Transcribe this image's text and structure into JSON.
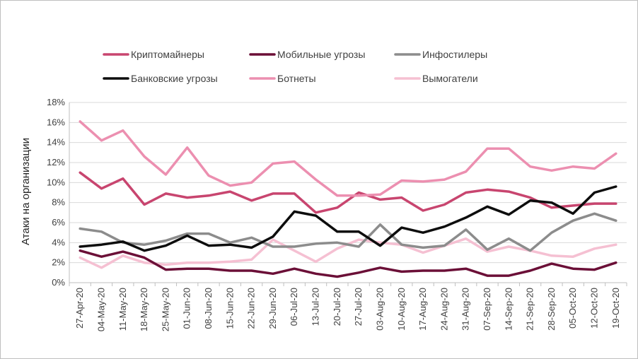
{
  "chart_data": {
    "type": "line",
    "title": "",
    "xlabel": "",
    "ylabel": "Атаки на организации",
    "ylim": [
      0,
      18
    ],
    "yticks": [
      "0%",
      "2%",
      "4%",
      "6%",
      "8%",
      "10%",
      "12%",
      "14%",
      "16%",
      "18%"
    ],
    "grid": "horizontal",
    "legend_position": "top",
    "categories": [
      "27-Apr-20",
      "04-May-20",
      "11-May-20",
      "18-May-20",
      "25-May-20",
      "01-Jun-20",
      "08-Jun-20",
      "15-Jun-20",
      "22-Jun-20",
      "29-Jun-20",
      "06-Jul-20",
      "13-Jul-20",
      "20-Jul-20",
      "27-Jul-20",
      "03-Aug-20",
      "10-Aug-20",
      "17-Aug-20",
      "24-Aug-20",
      "31-Aug-20",
      "07-Sep-20",
      "14-Sep-20",
      "21-Sep-20",
      "28-Sep-20",
      "05-Oct-20",
      "12-Oct-20",
      "19-Oct-20"
    ],
    "series": [
      {
        "name": "Криптомайнеры",
        "color": "#c8456f",
        "values": [
          11.0,
          9.4,
          10.4,
          7.8,
          8.9,
          8.5,
          8.7,
          9.1,
          8.2,
          8.9,
          8.9,
          7.0,
          7.5,
          9.0,
          8.3,
          8.5,
          7.2,
          7.8,
          9.0,
          9.3,
          9.1,
          8.5,
          7.5,
          7.7,
          7.9,
          7.9
        ]
      },
      {
        "name": "Мобильные угрозы",
        "color": "#6b0f37",
        "values": [
          3.2,
          2.6,
          3.1,
          2.5,
          1.3,
          1.4,
          1.4,
          1.2,
          1.2,
          0.9,
          1.4,
          0.9,
          0.6,
          1.0,
          1.5,
          1.1,
          1.2,
          1.2,
          1.4,
          0.7,
          0.7,
          1.2,
          1.9,
          1.4,
          1.3,
          2.0
        ]
      },
      {
        "name": "Инфостилеры",
        "color": "#8c8c8c",
        "values": [
          5.4,
          5.1,
          4.0,
          3.8,
          4.2,
          4.9,
          4.9,
          4.0,
          4.5,
          3.6,
          3.6,
          3.9,
          4.0,
          3.6,
          5.8,
          3.8,
          3.5,
          3.7,
          5.3,
          3.3,
          4.4,
          3.2,
          5.0,
          6.2,
          6.9,
          6.2
        ]
      },
      {
        "name": "Банковские угрозы",
        "color": "#0d0d0d",
        "values": [
          3.6,
          3.8,
          4.1,
          3.2,
          3.7,
          4.7,
          3.7,
          3.8,
          3.5,
          4.6,
          7.1,
          6.7,
          5.1,
          5.1,
          3.7,
          5.5,
          5.0,
          5.6,
          6.5,
          7.6,
          6.8,
          8.2,
          8.0,
          6.9,
          9.0,
          9.6
        ]
      },
      {
        "name": "Ботнеты",
        "color": "#ec8fb0",
        "values": [
          16.1,
          14.2,
          15.2,
          12.6,
          10.8,
          13.5,
          10.7,
          9.7,
          10.0,
          11.9,
          12.1,
          10.3,
          8.7,
          8.7,
          8.8,
          10.2,
          10.1,
          10.3,
          11.1,
          13.4,
          13.4,
          11.6,
          11.2,
          11.6,
          11.4,
          12.9
        ]
      },
      {
        "name": "Вымогатели",
        "color": "#f5c0d2",
        "values": [
          2.5,
          1.5,
          2.7,
          2.0,
          1.8,
          2.0,
          2.0,
          2.1,
          2.3,
          4.3,
          3.2,
          2.1,
          3.4,
          4.3,
          4.0,
          3.8,
          3.0,
          3.7,
          4.4,
          3.1,
          3.6,
          3.2,
          2.7,
          2.6,
          3.4,
          3.8
        ]
      }
    ]
  }
}
